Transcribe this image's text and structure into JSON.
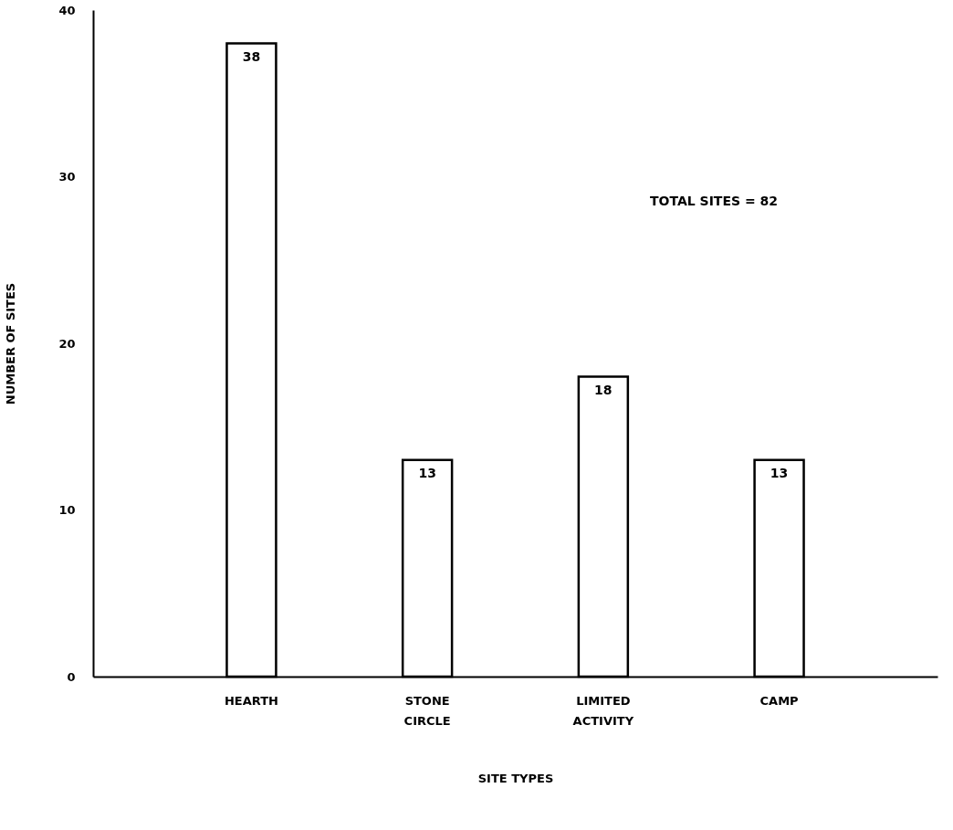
{
  "chart_data": {
    "type": "bar",
    "xlabel": "SITE TYPES",
    "ylabel": "NUMBER OF SITES",
    "categories": [
      "HEARTH",
      "STONE CIRCLE",
      "LIMITED ACTIVITY",
      "CAMP"
    ],
    "values": [
      38,
      13,
      18,
      13
    ],
    "color": "#ffffff",
    "ylim": [
      0,
      40
    ],
    "yticks": [
      0,
      10,
      20,
      30,
      40
    ],
    "grid": false,
    "data_labels": true,
    "annotations": [
      "TOTAL SITES = 82"
    ]
  }
}
